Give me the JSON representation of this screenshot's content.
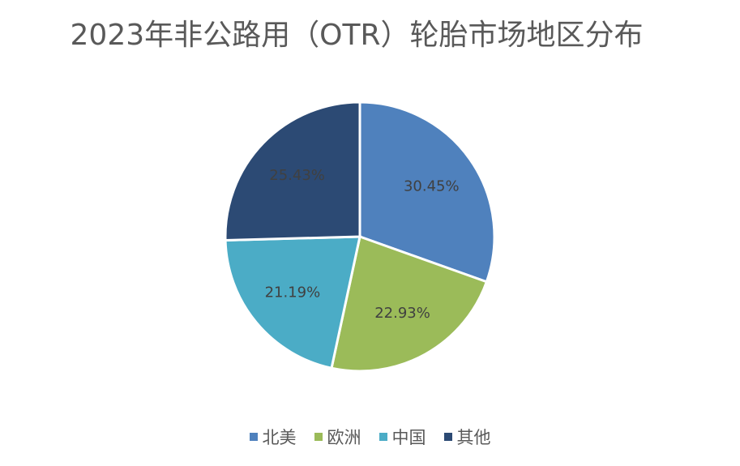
{
  "chart_data": {
    "type": "pie",
    "title": "2023年非公路用（OTR）轮胎市场地区分布",
    "categories": [
      "北美",
      "欧洲",
      "中国",
      "其他"
    ],
    "values": [
      30.45,
      22.93,
      21.19,
      25.43
    ],
    "labels": [
      "30.45%",
      "22.93%",
      "21.19%",
      "25.43%"
    ],
    "colors": [
      "#4F81BD",
      "#9BBB59",
      "#4BACC6",
      "#2C4A74"
    ],
    "label_colors": [
      "#404040",
      "#404040",
      "#404040",
      "#404040"
    ],
    "legend_position": "bottom",
    "start_angle_deg": 0,
    "direction": "clockwise"
  }
}
